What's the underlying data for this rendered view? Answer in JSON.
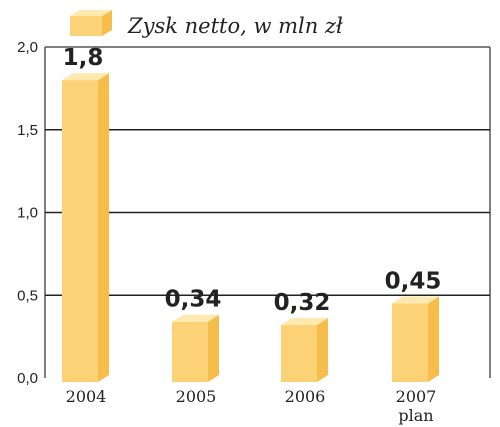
{
  "chart_data": {
    "type": "bar",
    "legend": {
      "label": "Zysk netto, w mln zł",
      "placement": "top-left"
    },
    "categories": [
      "2004",
      "2005",
      "2006",
      "2007"
    ],
    "category_sublabels": [
      "",
      "",
      "",
      "plan"
    ],
    "values": [
      1.8,
      0.34,
      0.32,
      0.45
    ],
    "value_labels": [
      "1,8",
      "0,34",
      "0,32",
      "0,45"
    ],
    "y_ticks": [
      {
        "value": 0,
        "label": "0,0"
      },
      {
        "value": 0.5,
        "label": "0,5"
      },
      {
        "value": 1.0,
        "label": "1,0"
      },
      {
        "value": 1.5,
        "label": "1,5"
      },
      {
        "value": 2.0,
        "label": "2,0"
      }
    ],
    "ylim": [
      0,
      2.0
    ],
    "grid": true,
    "colors": {
      "bar_front": "#fcd276",
      "bar_side": "#f6bd4b",
      "bar_top": "#fee9b0",
      "grid": "#222222",
      "frame": "#555555"
    }
  }
}
